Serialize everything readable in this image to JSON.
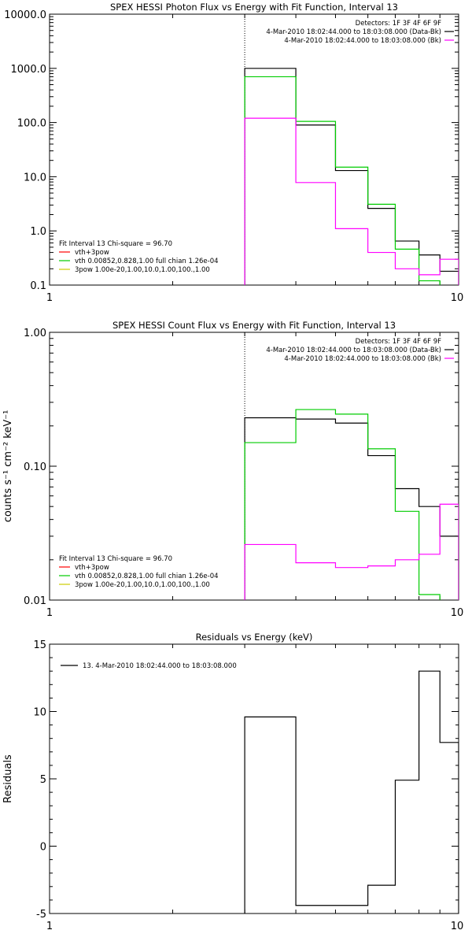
{
  "chart_data": [
    {
      "type": "line",
      "title": "SPEX HESSI Photon Flux vs Energy with Fit Function, Interval 13",
      "xlabel": "",
      "ylabel": "",
      "x_scale": "log",
      "y_scale": "log",
      "xlim": [
        1,
        10
      ],
      "ylim": [
        0.1,
        10000
      ],
      "x_tick_labels": [
        {
          "v": 1,
          "t": "1"
        },
        {
          "v": 10,
          "t": "10"
        }
      ],
      "y_tick_labels": [
        {
          "v": 0.1,
          "t": "0.1"
        },
        {
          "v": 1,
          "t": "1.0"
        },
        {
          "v": 10,
          "t": "10.0"
        },
        {
          "v": 100,
          "t": "100.0"
        },
        {
          "v": 1000,
          "t": "1000.0"
        },
        {
          "v": 10000,
          "t": "10000.0"
        }
      ],
      "vline_x": 3.0,
      "header_lines": [
        "Detectors: 1F 3F 4F 6F 9F",
        "4-Mar-2010 18:02:44.000 to 18:03:08.000 (Data-Bk)",
        "4-Mar-2010 18:02:44.000 to 18:03:08.000 (Bk)"
      ],
      "header_colors": [
        "",
        "#000000",
        "#ff00ff"
      ],
      "legend_title": "Fit Interval 13    Chi-square = 96.70",
      "legend": [
        {
          "label": "vth+3pow",
          "color": "#ff0000"
        },
        {
          "label": "vth 0.00852,0.828,1.00  full chian 1.26e-04",
          "color": "#00cc00"
        },
        {
          "label": "3pow 1.00e-20,1.00,10.0,1.00,100.,1.00",
          "color": "#cccc00"
        }
      ],
      "edges": [
        3.0,
        4.0,
        5.0,
        6.0,
        7.0,
        8.0,
        9.0,
        10.0
      ],
      "series": [
        {
          "color": "#000000",
          "values": [
            1000,
            90,
            13,
            2.6,
            0.65,
            0.36,
            0.18
          ]
        },
        {
          "color": "#00cc00",
          "values": [
            700,
            105,
            15,
            3.1,
            0.46,
            0.12,
            0.06
          ]
        },
        {
          "color": "#ff00ff",
          "values": [
            120,
            7.8,
            1.1,
            0.4,
            0.2,
            0.155,
            0.3
          ]
        }
      ]
    },
    {
      "type": "line",
      "title": "SPEX HESSI Count Flux vs Energy with Fit Function, Interval 13",
      "xlabel": "",
      "ylabel": "counts s⁻¹ cm⁻² keV⁻¹",
      "x_scale": "log",
      "y_scale": "log",
      "xlim": [
        1,
        10
      ],
      "ylim": [
        0.01,
        1
      ],
      "x_tick_labels": [
        {
          "v": 1,
          "t": "1"
        },
        {
          "v": 10,
          "t": "10"
        }
      ],
      "y_tick_labels": [
        {
          "v": 0.01,
          "t": "0.01"
        },
        {
          "v": 0.1,
          "t": "0.10"
        },
        {
          "v": 1,
          "t": "1.00"
        }
      ],
      "vline_x": 3.0,
      "header_lines": [
        "Detectors: 1F 3F 4F 6F 9F",
        "4-Mar-2010 18:02:44.000 to 18:03:08.000 (Data-Bk)",
        "4-Mar-2010 18:02:44.000 to 18:03:08.000 (Bk)"
      ],
      "header_colors": [
        "",
        "#000000",
        "#ff00ff"
      ],
      "legend_title": "Fit Interval 13    Chi-square = 96.70",
      "legend": [
        {
          "label": "vth+3pow",
          "color": "#ff0000"
        },
        {
          "label": "vth 0.00852,0.828,1.00  full chian 1.26e-04",
          "color": "#00cc00"
        },
        {
          "label": "3pow 1.00e-20,1.00,10.0,1.00,100.,1.00",
          "color": "#cccc00"
        }
      ],
      "edges": [
        3.0,
        4.0,
        5.0,
        6.0,
        7.0,
        8.0,
        9.0,
        10.0
      ],
      "series": [
        {
          "color": "#000000",
          "values": [
            0.23,
            0.225,
            0.21,
            0.12,
            0.068,
            0.05,
            0.03
          ]
        },
        {
          "color": "#00cc00",
          "values": [
            0.15,
            0.265,
            0.245,
            0.135,
            0.046,
            0.011,
            0.005
          ]
        },
        {
          "color": "#ff00ff",
          "values": [
            0.026,
            0.019,
            0.0175,
            0.018,
            0.02,
            0.022,
            0.052
          ]
        }
      ]
    },
    {
      "type": "line",
      "title": "Residuals vs Energy (keV)",
      "xlabel": "",
      "ylabel": "Residuals",
      "x_scale": "log",
      "y_scale": "linear",
      "xlim": [
        1,
        10
      ],
      "ylim": [
        -5,
        15
      ],
      "x_tick_labels": [
        {
          "v": 1,
          "t": "1"
        },
        {
          "v": 10,
          "t": "10"
        }
      ],
      "y_tick_labels": [
        {
          "v": -5,
          "t": "-5"
        },
        {
          "v": 0,
          "t": "0"
        },
        {
          "v": 5,
          "t": "5"
        },
        {
          "v": 10,
          "t": "10"
        },
        {
          "v": 15,
          "t": "15"
        }
      ],
      "legend": [
        {
          "label": "13.  4-Mar-2010 18:02:44.000 to 18:03:08.000",
          "color": "#000000"
        }
      ],
      "edges": [
        3.0,
        4.0,
        5.0,
        6.0,
        7.0,
        8.0,
        9.0,
        10.0
      ],
      "series": [
        {
          "color": "#000000",
          "values": [
            9.6,
            -4.4,
            -4.4,
            -2.9,
            4.9,
            13.0,
            7.7
          ]
        }
      ]
    }
  ]
}
